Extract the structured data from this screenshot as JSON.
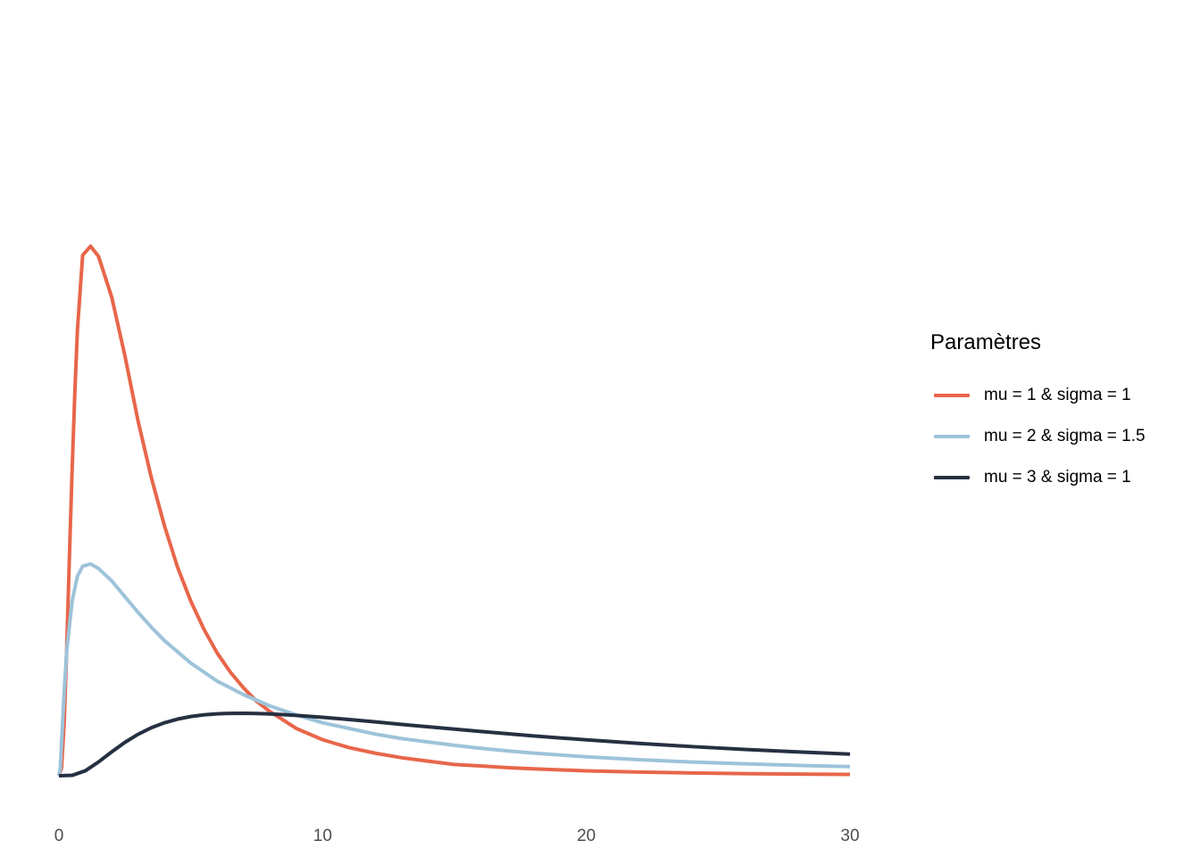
{
  "chart_data": {
    "type": "line",
    "title": "",
    "xlabel": "",
    "ylabel": "",
    "xlim": [
      0,
      30
    ],
    "ylim": [
      0,
      0.66
    ],
    "x_ticks": [
      0,
      10,
      20,
      30
    ],
    "x_tick_labels": [
      "0",
      "10",
      "20",
      "30"
    ],
    "y_ticks_shown": false,
    "grid": false,
    "legend_position": "right",
    "legend_title": "Paramètres",
    "series": [
      {
        "name": "mu = 1 & sigma = 1",
        "color": "#E8664A",
        "x": [
          0,
          0.1,
          0.2,
          0.3,
          0.4,
          0.5,
          0.6,
          0.7,
          0.9,
          1.2,
          1.5,
          2,
          2.5,
          3,
          3.5,
          4,
          4.5,
          5,
          5.5,
          6,
          6.5,
          7,
          7.5,
          8,
          9,
          10,
          11,
          12,
          13,
          14,
          15,
          16,
          17,
          18,
          20,
          22,
          24,
          26,
          28,
          30
        ],
        "y": [
          0,
          0.007,
          0.047,
          0.117,
          0.196,
          0.271,
          0.338,
          0.395,
          0.462,
          0.47,
          0.461,
          0.425,
          0.373,
          0.315,
          0.265,
          0.222,
          0.185,
          0.155,
          0.13,
          0.109,
          0.092,
          0.078,
          0.066,
          0.057,
          0.042,
          0.032,
          0.025,
          0.02,
          0.016,
          0.013,
          0.01,
          0.0087,
          0.0072,
          0.0061,
          0.0044,
          0.0033,
          0.0025,
          0.0019,
          0.0015,
          0.0012
        ]
      },
      {
        "name": "mu = 2 & sigma = 1.5",
        "color": "#9DC3DA",
        "x": [
          0,
          0.05,
          0.1,
          0.2,
          0.3,
          0.5,
          0.7,
          0.9,
          1.2,
          1.5,
          2,
          2.5,
          3,
          3.5,
          4,
          4.5,
          5,
          5.5,
          6,
          7,
          8,
          9,
          10,
          11,
          12,
          13,
          14,
          15,
          16,
          17,
          18,
          20,
          22,
          24,
          26,
          28,
          30
        ],
        "y": [
          0,
          0.0065,
          0.029,
          0.075,
          0.112,
          0.155,
          0.177,
          0.186,
          0.188,
          0.184,
          0.173,
          0.159,
          0.145,
          0.132,
          0.12,
          0.11,
          0.1,
          0.092,
          0.084,
          0.072,
          0.062,
          0.054,
          0.047,
          0.042,
          0.037,
          0.033,
          0.03,
          0.027,
          0.0244,
          0.0221,
          0.0201,
          0.0168,
          0.0143,
          0.0122,
          0.0106,
          0.0092,
          0.0081
        ]
      },
      {
        "name": "mu = 3 & sigma = 1",
        "color": "#253041",
        "x": [
          0,
          0.5,
          1,
          1.5,
          2,
          2.5,
          3,
          3.5,
          4,
          4.5,
          5,
          5.5,
          6,
          6.5,
          7,
          7.5,
          8,
          8.5,
          9,
          10,
          11,
          12,
          13,
          14,
          15,
          16,
          17,
          18,
          19,
          20,
          22,
          24,
          26,
          28,
          30
        ],
        "y": [
          0,
          0.00035,
          0.0044,
          0.0122,
          0.0212,
          0.0296,
          0.0368,
          0.0426,
          0.047,
          0.0503,
          0.0526,
          0.0541,
          0.055,
          0.0554,
          0.0555,
          0.0553,
          0.0549,
          0.0543,
          0.0536,
          0.0519,
          0.0499,
          0.0478,
          0.0456,
          0.0435,
          0.0414,
          0.0393,
          0.0373,
          0.0354,
          0.0336,
          0.0319,
          0.0287,
          0.0259,
          0.0234,
          0.0212,
          0.0192
        ]
      }
    ]
  }
}
